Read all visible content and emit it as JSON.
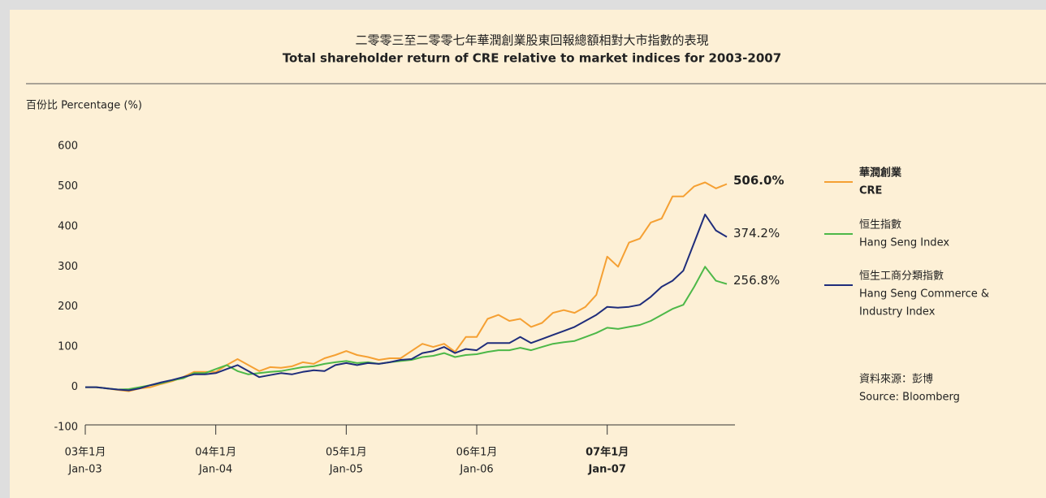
{
  "chart_data": {
    "type": "line",
    "title": "二零零三至二零零七年華潤創業股東回報總額相對大市指數的表現",
    "subtitle": "Total shareholder return of CRE relative to market indices for 2003-2007",
    "y_label": "百份比 Percentage (%)",
    "source": [
      "資料來源：彭博",
      "Source: Bloomberg"
    ],
    "ylim": [
      -100,
      600
    ],
    "yticks": [
      -100,
      0,
      100,
      200,
      300,
      400,
      500,
      600
    ],
    "xlim": [
      0,
      59
    ],
    "xticks": [
      {
        "value": 0,
        "label": "03年1月",
        "sublabel": "Jan-03"
      },
      {
        "value": 12,
        "label": "04年1月",
        "sublabel": "Jan-04"
      },
      {
        "value": 24,
        "label": "05年1月",
        "sublabel": "Jan-05"
      },
      {
        "value": 36,
        "label": "06年1月",
        "sublabel": "Jan-06"
      },
      {
        "value": 48,
        "label": "07年1月",
        "sublabel": "Jan-07"
      }
    ],
    "series": [
      {
        "name": [
          "華潤創業",
          "CRE"
        ],
        "color": "#f5a033",
        "values": [
          0,
          0,
          -3,
          -7,
          -10,
          -3,
          0,
          8,
          15,
          25,
          38,
          38,
          38,
          55,
          70,
          55,
          40,
          50,
          48,
          52,
          62,
          58,
          72,
          80,
          90,
          80,
          75,
          68,
          72,
          72,
          90,
          108,
          100,
          108,
          88,
          125,
          125,
          170,
          180,
          165,
          170,
          150,
          160,
          185,
          192,
          185,
          200,
          230,
          325,
          300,
          360,
          370,
          410,
          420,
          475,
          475,
          500,
          510,
          495,
          506
        ],
        "value_labels": [
          null,
          null,
          null,
          null,
          null,
          null,
          null,
          null,
          null,
          null,
          null,
          null,
          null,
          null,
          null,
          null,
          null,
          null,
          null,
          null,
          null,
          null,
          null,
          null,
          null,
          null,
          null,
          null,
          null,
          null,
          null,
          null,
          null,
          null,
          null,
          null,
          null,
          null,
          null,
          null,
          null,
          null,
          null,
          null,
          null,
          null,
          null,
          null,
          null,
          null,
          null,
          null,
          null,
          null,
          null,
          null,
          null,
          null,
          null,
          "506.0%"
        ]
      },
      {
        "name": [
          "恒生指數",
          "Hang Seng Index"
        ],
        "color": "#4db848",
        "values": [
          0,
          0,
          -3,
          -6,
          -5,
          0,
          5,
          10,
          17,
          22,
          35,
          35,
          45,
          55,
          40,
          32,
          35,
          38,
          40,
          45,
          50,
          52,
          58,
          62,
          65,
          60,
          62,
          58,
          62,
          65,
          68,
          75,
          78,
          85,
          75,
          80,
          82,
          88,
          92,
          92,
          98,
          92,
          100,
          108,
          112,
          115,
          125,
          135,
          148,
          145,
          150,
          155,
          165,
          180,
          195,
          205,
          250,
          300,
          265,
          256.8
        ],
        "value_labels": [
          null,
          null,
          null,
          null,
          null,
          null,
          null,
          null,
          null,
          null,
          null,
          null,
          null,
          null,
          null,
          null,
          null,
          null,
          null,
          null,
          null,
          null,
          null,
          null,
          null,
          null,
          null,
          null,
          null,
          null,
          null,
          null,
          null,
          null,
          null,
          null,
          null,
          null,
          null,
          null,
          null,
          null,
          null,
          null,
          null,
          null,
          null,
          null,
          null,
          null,
          null,
          null,
          null,
          null,
          null,
          null,
          null,
          null,
          null,
          "256.8%"
        ]
      },
      {
        "name": [
          "恒生工商分類指數",
          "Hang Seng Commerce &",
          "Industry Index"
        ],
        "color": "#1f2d7b",
        "values": [
          0,
          0,
          -3,
          -6,
          -8,
          -3,
          5,
          12,
          18,
          25,
          32,
          32,
          35,
          45,
          55,
          40,
          25,
          30,
          35,
          32,
          38,
          42,
          40,
          55,
          60,
          55,
          60,
          58,
          62,
          68,
          70,
          85,
          90,
          100,
          85,
          95,
          92,
          110,
          110,
          110,
          125,
          110,
          120,
          130,
          140,
          150,
          165,
          180,
          200,
          198,
          200,
          205,
          225,
          250,
          265,
          290,
          360,
          430,
          390,
          374.2
        ],
        "value_labels": [
          null,
          null,
          null,
          null,
          null,
          null,
          null,
          null,
          null,
          null,
          null,
          null,
          null,
          null,
          null,
          null,
          null,
          null,
          null,
          null,
          null,
          null,
          null,
          null,
          null,
          null,
          null,
          null,
          null,
          null,
          null,
          null,
          null,
          null,
          null,
          null,
          null,
          null,
          null,
          null,
          null,
          null,
          null,
          null,
          null,
          null,
          null,
          null,
          null,
          null,
          null,
          null,
          null,
          null,
          null,
          null,
          null,
          null,
          null,
          "374.2%"
        ]
      }
    ]
  }
}
